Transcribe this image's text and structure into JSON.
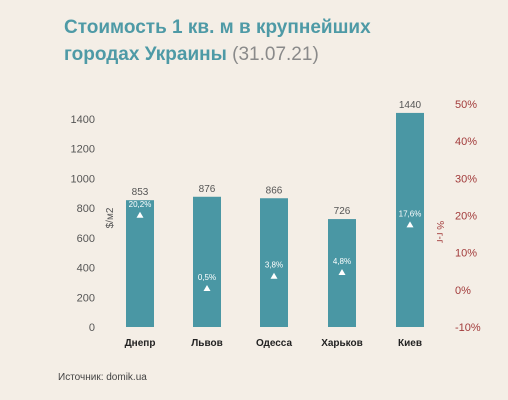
{
  "title": {
    "line1": "Стоимость 1 кв. м в крупнейших",
    "line2": "городах  Украины",
    "date": "(31.07.21)"
  },
  "source": "Источник: domik.ua",
  "colors": {
    "bar": "#4a97a4",
    "left_axis_text": "#555555",
    "right_axis_text": "#a23b3b",
    "title": "#4e9aa6"
  },
  "chart_data": {
    "type": "bar",
    "categories": [
      "Днепр",
      "Львов",
      "Одесса",
      "Харьков",
      "Киев"
    ],
    "values": [
      853,
      876,
      866,
      726,
      1440
    ],
    "value_labels": [
      "853",
      "876",
      "866",
      "726",
      "1440"
    ],
    "change_pct": [
      20.2,
      0.5,
      3.8,
      4.8,
      17.6
    ],
    "change_labels": [
      "20,2%",
      "0,5%",
      "3,8%",
      "4,8%",
      "17,6%"
    ],
    "ylabel": "$/м2",
    "y2label": "% г-г",
    "ylim": [
      0,
      1500
    ],
    "yticks": [
      "0",
      "200",
      "400",
      "600",
      "800",
      "1000",
      "1200",
      "1400"
    ],
    "y2lim": [
      -10,
      50
    ],
    "y2ticks": [
      "-10%",
      "0%",
      "10%",
      "20%",
      "30%",
      "40%",
      "50%"
    ],
    "grid": false,
    "legend": "none"
  }
}
